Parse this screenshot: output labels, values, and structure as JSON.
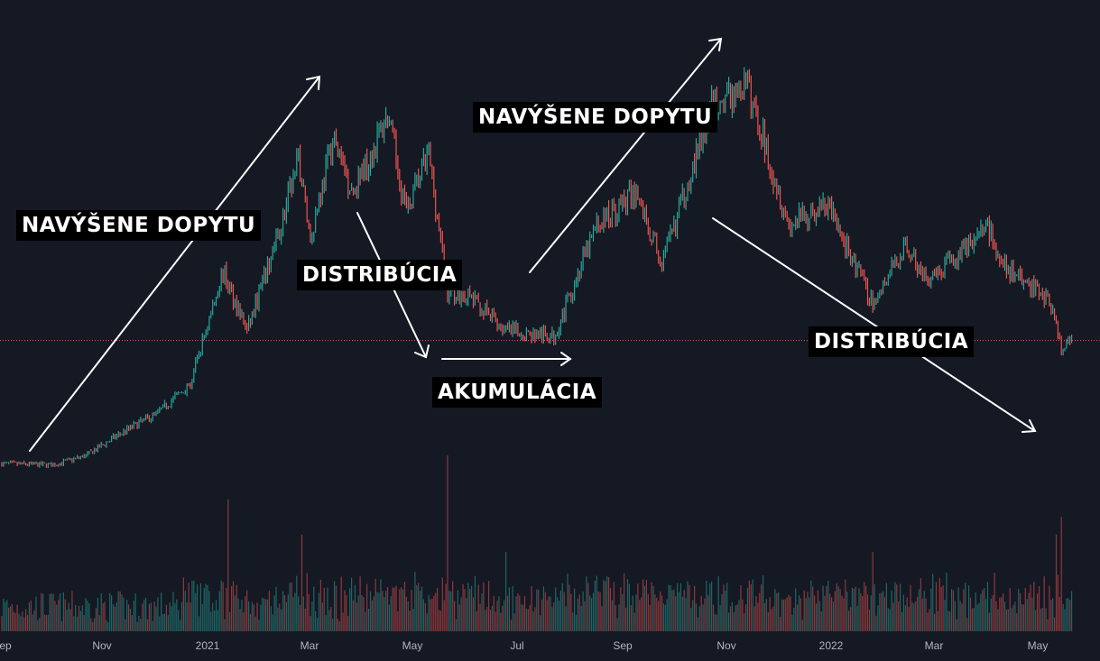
{
  "chart_data": {
    "type": "candlestick",
    "title": "",
    "colors": {
      "background": "#151924",
      "up": "#26a69a",
      "down": "#ef5350",
      "price_line": "#ef5350",
      "annotation": "#ffffff",
      "label_bg": "#000000"
    },
    "x_ticks": [
      "Sep",
      "Nov",
      "2021",
      "Mar",
      "May",
      "Jul",
      "Sep",
      "Nov",
      "2022",
      "Mar",
      "May"
    ],
    "x_range": [
      "2020-09-01",
      "2022-05-18"
    ],
    "price_path": [
      [
        "2020-09-01",
        10.8
      ],
      [
        "2020-10-01",
        10.6
      ],
      [
        "2020-10-20",
        12
      ],
      [
        "2020-11-10",
        15.5
      ],
      [
        "2020-12-01",
        18.5
      ],
      [
        "2020-12-20",
        23
      ],
      [
        "2021-01-08",
        40
      ],
      [
        "2021-01-22",
        31
      ],
      [
        "2021-02-10",
        46
      ],
      [
        "2021-02-21",
        57
      ],
      [
        "2021-02-28",
        45
      ],
      [
        "2021-03-13",
        60
      ],
      [
        "2021-03-25",
        52
      ],
      [
        "2021-04-14",
        63.5
      ],
      [
        "2021-04-25",
        49
      ],
      [
        "2021-05-08",
        58
      ],
      [
        "2021-05-19",
        37
      ],
      [
        "2021-06-01",
        36
      ],
      [
        "2021-06-22",
        31
      ],
      [
        "2021-07-20",
        30
      ],
      [
        "2021-08-14",
        47
      ],
      [
        "2021-09-06",
        52
      ],
      [
        "2021-09-21",
        41
      ],
      [
        "2021-10-20",
        65
      ],
      [
        "2021-11-10",
        68
      ],
      [
        "2021-11-26",
        54
      ],
      [
        "2021-12-04",
        47
      ],
      [
        "2021-12-27",
        50
      ],
      [
        "2022-01-22",
        35
      ],
      [
        "2022-02-10",
        44
      ],
      [
        "2022-02-24",
        38
      ],
      [
        "2022-03-29",
        47
      ],
      [
        "2022-04-11",
        40
      ],
      [
        "2022-05-05",
        36
      ],
      [
        "2022-05-12",
        28
      ],
      [
        "2022-05-18",
        29.5
      ]
    ],
    "last_price": 29.5,
    "volume_spikes": [
      [
        "2021-01-11",
        0.75
      ],
      [
        "2021-02-23",
        0.55
      ],
      [
        "2021-05-19",
        1.0
      ],
      [
        "2021-06-22",
        0.45
      ],
      [
        "2022-01-22",
        0.45
      ],
      [
        "2022-05-09",
        0.55
      ],
      [
        "2022-05-12",
        0.65
      ]
    ],
    "grid": false,
    "legend": "none"
  },
  "annotations": [
    {
      "text": "NAVÝŠENE DOPYTU"
    },
    {
      "text": "DISTRIBÚCIA"
    },
    {
      "text": "NAVÝŠENE DOPYTU"
    },
    {
      "text": "AKUMULÁCIA"
    },
    {
      "text": "DISTRIBÚCIA"
    }
  ]
}
